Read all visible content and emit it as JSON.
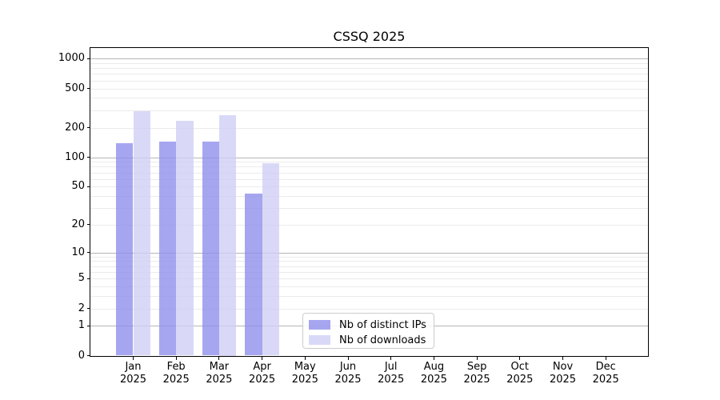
{
  "title": "CSSQ 2025",
  "chart_data": {
    "type": "bar",
    "title": "CSSQ 2025",
    "categories": [
      "Jan",
      "Feb",
      "Mar",
      "Apr",
      "May",
      "Jun",
      "Jul",
      "Aug",
      "Sep",
      "Oct",
      "Nov",
      "Dec"
    ],
    "year": "2025",
    "series": [
      {
        "name": "Nb of distinct IPs",
        "color": "#9090ec",
        "values": [
          140,
          144,
          144,
          42,
          0,
          0,
          0,
          0,
          0,
          0,
          0,
          0
        ]
      },
      {
        "name": "Nb of downloads",
        "color": "#d0d0f5",
        "values": [
          295,
          235,
          270,
          87,
          0,
          0,
          0,
          0,
          0,
          0,
          0,
          0
        ]
      }
    ],
    "yticks": [
      1000,
      500,
      200,
      100,
      50,
      20,
      10,
      5,
      2,
      1,
      0
    ],
    "ylim": [
      0,
      1280
    ],
    "yscale": "log1p (position proportional to log10(value+1))",
    "grid": "both (major decades darker, minor lighter)",
    "legend_position": "lower center",
    "xlabel": "",
    "ylabel": ""
  }
}
